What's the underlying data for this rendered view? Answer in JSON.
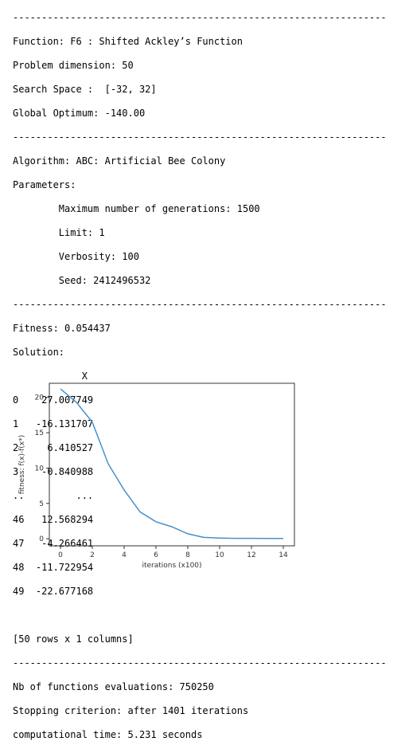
{
  "separator": "-----------------------------------------------------------------",
  "problem": {
    "function_line": "Function: F6 : Shifted Ackley’s Function",
    "dimension_line": "Problem dimension: 50",
    "search_space_line": "Search Space :  [-32, 32]",
    "global_optimum_line": "Global Optimum: -140.00"
  },
  "algorithm": {
    "name_line": "Algorithm: ABC: Artificial Bee Colony",
    "parameters_label": "Parameters:",
    "params": [
      "        Maximum number of generations: 1500",
      "        Limit: 1",
      "        Verbosity: 100",
      "        Seed: 2412496532"
    ]
  },
  "result": {
    "fitness_line": "Fitness: 0.054437",
    "solution_label": "Solution:",
    "column_header": "            X",
    "rows": [
      "0    27.007749",
      "1   -16.131707",
      "2     6.410527",
      "3    -0.840988",
      "..         ...",
      "46   12.568294",
      "47   -4.266461",
      "48  -11.722954",
      "49  -22.677168"
    ],
    "shape_line": "[50 rows x 1 columns]"
  },
  "summary": {
    "evaluations_line": "Nb of functions evaluations: 750250",
    "stopping_line": "Stopping criterion: after 1401 iterations",
    "time_line": "computational time: 5.231 seconds"
  },
  "chart_data": {
    "type": "line",
    "xlabel": "iterations (x100)",
    "ylabel": "fitness: f(x)-f(x*)",
    "xlim": [
      -0.7,
      14.7
    ],
    "ylim": [
      -1.0,
      22.0
    ],
    "xticks": [
      0,
      2,
      4,
      6,
      8,
      10,
      12,
      14
    ],
    "yticks": [
      0,
      5,
      10,
      15,
      20
    ],
    "grid": false,
    "line_color": "#4a90c8",
    "series": [
      {
        "x": [
          0,
          1,
          2,
          3,
          4,
          5,
          6,
          7,
          8,
          9,
          10,
          11,
          12,
          13,
          14
        ],
        "values": [
          21.2,
          19.3,
          16.5,
          10.6,
          6.9,
          3.8,
          2.4,
          1.7,
          0.7,
          0.2,
          0.1,
          0.06,
          0.06,
          0.05,
          0.05
        ]
      }
    ]
  }
}
